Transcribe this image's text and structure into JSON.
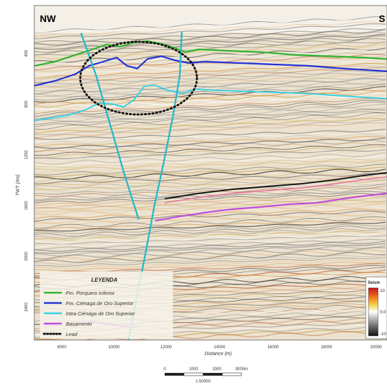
{
  "orientation": {
    "left": "NW",
    "right": "S"
  },
  "axes": {
    "x_label": "Distance (m)",
    "y_label": "TWT (ms)",
    "x_ticks": [
      "8000",
      "10000",
      "12000",
      "14000",
      "16000",
      "18000",
      "20000"
    ],
    "y_ticks": [
      "400",
      "800",
      "1200",
      "1600",
      "2000",
      "2400"
    ]
  },
  "legend": {
    "title": "LEYENDA",
    "items": [
      {
        "label": "Fm. Porquero Inferior",
        "color": "#2bb32b",
        "style": "solid"
      },
      {
        "label": "Fm. Ciénaga de Oro Superior",
        "color": "#1f2fd6",
        "style": "solid"
      },
      {
        "label": "Intra Ciénaga de Oro Superior",
        "color": "#38d1e6",
        "style": "solid"
      },
      {
        "label": "Basamento",
        "color": "#c04ce0",
        "style": "solid"
      },
      {
        "label": "Lead",
        "color": "#111111",
        "style": "dotted"
      }
    ]
  },
  "colorbar": {
    "title": "Seism",
    "top": "10",
    "mid": "0.0",
    "bottom": "-10"
  },
  "scalebar": {
    "labels": [
      "0",
      "1000",
      "2000",
      "3000m"
    ],
    "unit": "1:50000"
  }
}
